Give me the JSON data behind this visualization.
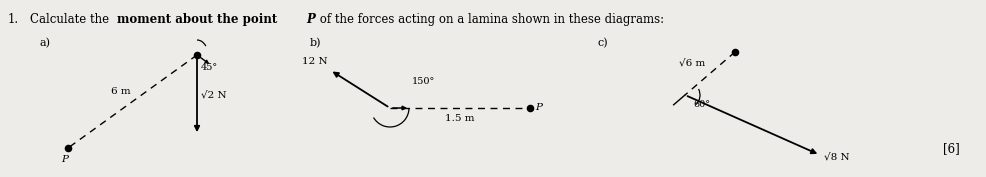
{
  "bg_color": "#eeece8",
  "title_normal1": "1.   Calculate the ",
  "title_bold": "moment about the point ",
  "title_bold_italic": "P",
  "title_normal2": " of the forces acting on a lamina shown in these diagrams:",
  "label_a": "a)",
  "label_b": "b)",
  "label_c": "c)",
  "mark": "[6]",
  "a_arm_label": "6 m",
  "a_angle_label": "45°",
  "a_force_label": "√2 N",
  "b_force_label": "12 N",
  "b_angle_label": "150°",
  "b_dist_label": "1.5 m",
  "c_arm_label": "√6 m",
  "c_angle_label": "60°",
  "c_force_label": "√8 N"
}
